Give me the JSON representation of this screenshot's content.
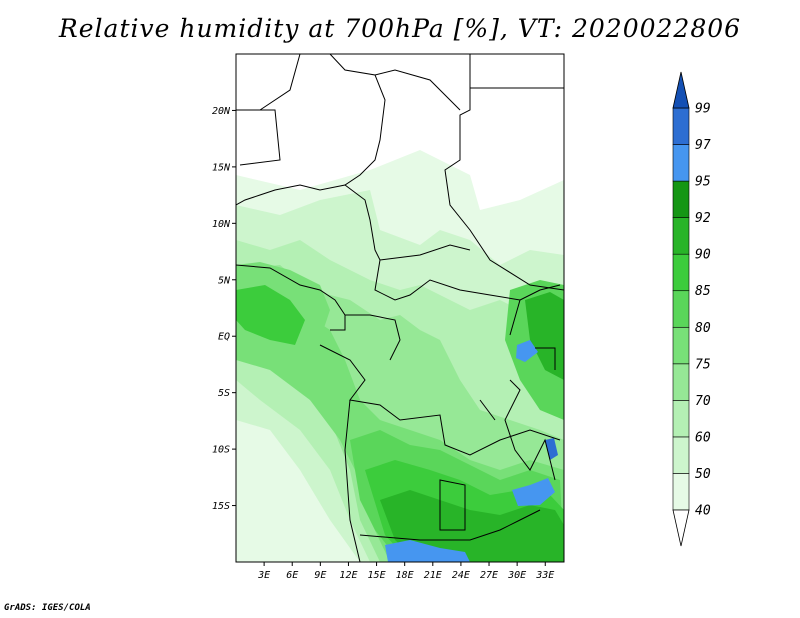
{
  "title": "Relative humidity at 700hPa [%], VT: 2020022806",
  "credit": "GrADS: IGES/COLA",
  "map": {
    "lon_range": [
      0,
      35
    ],
    "lat_range": [
      -20,
      25
    ],
    "lat_ticks": [
      {
        "value": 20,
        "label": "20N"
      },
      {
        "value": 15,
        "label": "15N"
      },
      {
        "value": 10,
        "label": "10N"
      },
      {
        "value": 5,
        "label": "5N"
      },
      {
        "value": 0,
        "label": "EQ"
      },
      {
        "value": -5,
        "label": "5S"
      },
      {
        "value": -10,
        "label": "10S"
      },
      {
        "value": -15,
        "label": "15S"
      }
    ],
    "lon_ticks": [
      {
        "value": 3,
        "label": "3E"
      },
      {
        "value": 6,
        "label": "6E"
      },
      {
        "value": 9,
        "label": "9E"
      },
      {
        "value": 12,
        "label": "12E"
      },
      {
        "value": 15,
        "label": "15E"
      },
      {
        "value": 18,
        "label": "18E"
      },
      {
        "value": 21,
        "label": "21E"
      },
      {
        "value": 24,
        "label": "24E"
      },
      {
        "value": 27,
        "label": "27E"
      },
      {
        "value": 30,
        "label": "30E"
      },
      {
        "value": 33,
        "label": "33E"
      }
    ]
  },
  "colorbar": {
    "levels": [
      "40",
      "50",
      "60",
      "70",
      "75",
      "80",
      "85",
      "90",
      "92",
      "95",
      "97",
      "99"
    ],
    "colors": [
      "#e6fae6",
      "#cdf5cd",
      "#b4f0b4",
      "#96e896",
      "#78e078",
      "#5ad65a",
      "#3ccc3c",
      "#28b428",
      "#149614",
      "#4696f0",
      "#2d6ed2",
      "#1450b4"
    ]
  }
}
